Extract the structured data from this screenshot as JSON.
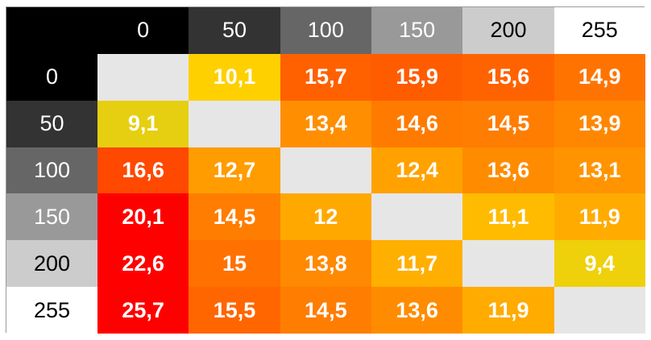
{
  "chart_data": {
    "type": "heatmap",
    "title": "",
    "xlabel": "",
    "ylabel": "",
    "x_categories": [
      "0",
      "50",
      "100",
      "150",
      "200",
      "255"
    ],
    "y_categories": [
      "0",
      "50",
      "100",
      "150",
      "200",
      "255"
    ],
    "header_colors": [
      "#000000",
      "#333333",
      "#666666",
      "#999999",
      "#cccccc",
      "#ffffff"
    ],
    "header_text_colors": [
      "#ffffff",
      "#ffffff",
      "#ffffff",
      "#ffffff",
      "#000000",
      "#000000"
    ],
    "values": [
      [
        null,
        "10,1",
        "15,7",
        "15,9",
        "15,6",
        "14,9"
      ],
      [
        "9,1",
        null,
        "13,4",
        "14,6",
        "14,5",
        "13,9"
      ],
      [
        "16,6",
        "12,7",
        null,
        "12,4",
        "13,6",
        "13,1"
      ],
      [
        "20,1",
        "14,5",
        "12",
        null,
        "11,1",
        "11,9"
      ],
      [
        "22,6",
        "15",
        "13,8",
        "11,7",
        null,
        "9,4"
      ],
      [
        "25,7",
        "15,5",
        "14,5",
        "13,6",
        "11,9",
        null
      ]
    ],
    "empty_cell_color": "#e6e6e6",
    "color_scale": [
      {
        "value": 9,
        "color": "#e2cf12"
      },
      {
        "value": 10,
        "color": "#ffd200"
      },
      {
        "value": 11.5,
        "color": "#ffb300"
      },
      {
        "value": 13,
        "color": "#ff9600"
      },
      {
        "value": 14.5,
        "color": "#ff7d00"
      },
      {
        "value": 16,
        "color": "#ff5a00"
      },
      {
        "value": 17,
        "color": "#ff3c00"
      },
      {
        "value": 19,
        "color": "#ff0000"
      }
    ]
  }
}
